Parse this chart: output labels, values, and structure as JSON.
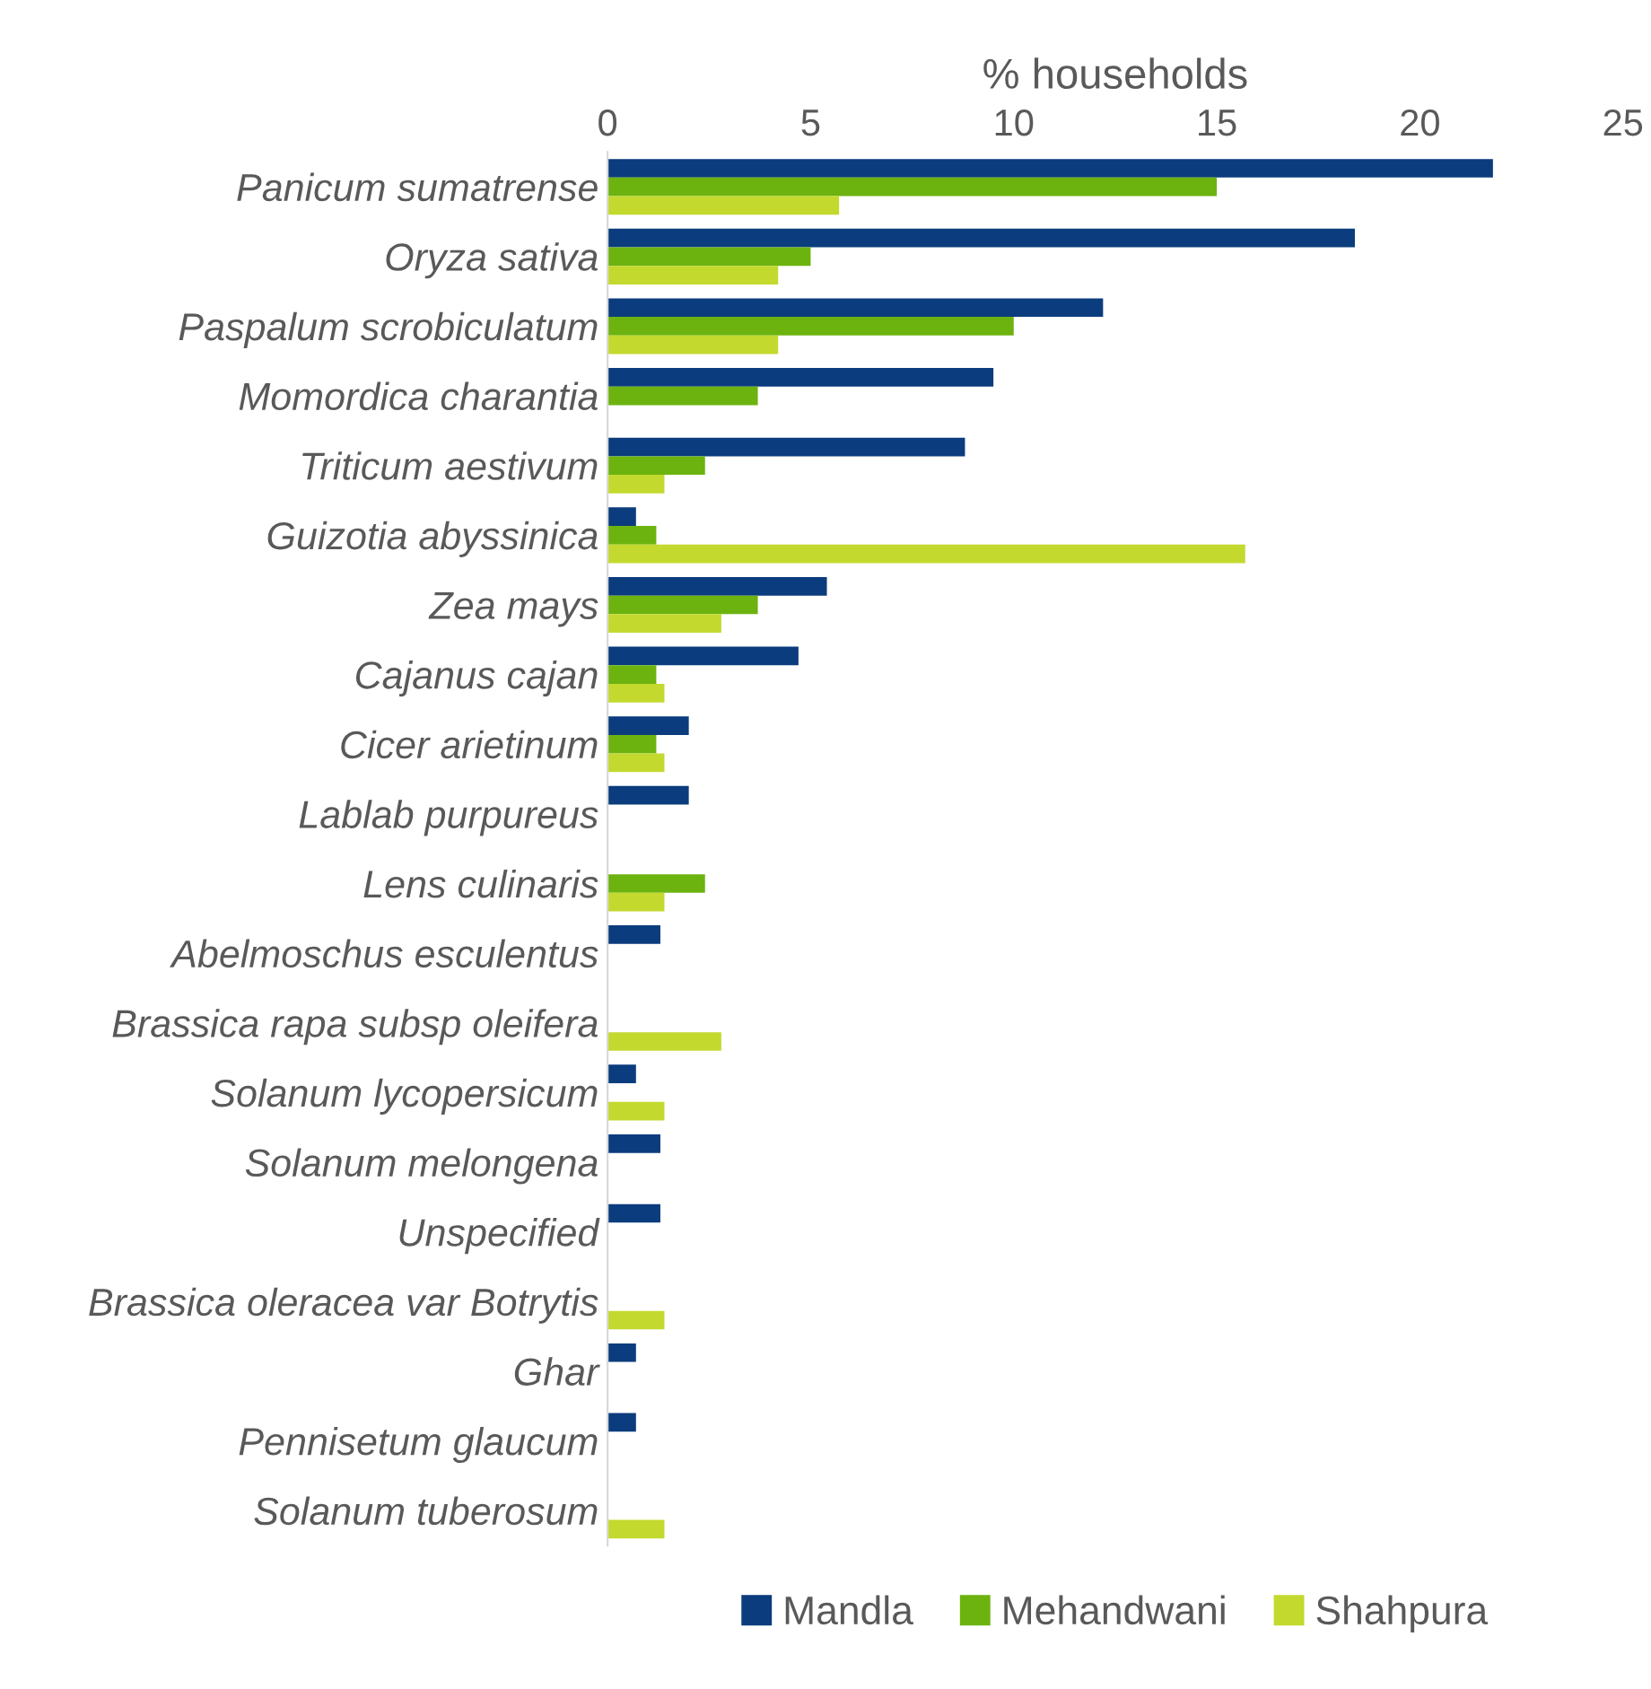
{
  "chart_data": {
    "type": "bar",
    "orientation": "horizontal",
    "xlabel": "% households",
    "categories": [
      "Panicum sumatrense",
      "Oryza sativa",
      "Paspalum scrobiculatum",
      "Momordica charantia",
      "Triticum aestivum",
      "Guizotia abyssinica",
      "Zea mays",
      "Cajanus cajan",
      "Cicer arietinum",
      "Lablab purpureus",
      "Lens culinaris",
      "Abelmoschus esculentus",
      "Brassica rapa subsp oleifera",
      "Solanum lycopersicum",
      "Solanum melongena",
      "Unspecified",
      "Brassica oleracea var Botrytis",
      "Ghar",
      "Pennisetum glaucum",
      "Solanum tuberosum"
    ],
    "series": [
      {
        "name": "Mandla",
        "color": "#0b3c7d",
        "values": [
          21.8,
          18.4,
          12.2,
          9.5,
          8.8,
          0.7,
          5.4,
          4.7,
          2.0,
          2.0,
          null,
          1.3,
          null,
          0.7,
          1.3,
          1.3,
          null,
          0.7,
          0.7,
          null
        ]
      },
      {
        "name": "Mehandwani",
        "color": "#6cb30f",
        "values": [
          15.0,
          5.0,
          10.0,
          3.7,
          2.4,
          1.2,
          3.7,
          1.2,
          1.2,
          null,
          2.4,
          null,
          null,
          null,
          null,
          null,
          null,
          null,
          null,
          null
        ]
      },
      {
        "name": "Shahpura",
        "color": "#c3d92e",
        "values": [
          5.7,
          4.2,
          4.2,
          null,
          1.4,
          15.7,
          2.8,
          1.4,
          1.4,
          null,
          1.4,
          null,
          2.8,
          1.4,
          null,
          null,
          1.4,
          null,
          null,
          1.4
        ]
      }
    ],
    "xlim": [
      0,
      25
    ],
    "xticks": [
      0,
      5,
      10,
      15,
      20,
      25
    ],
    "grid": false,
    "legend": "bottom"
  }
}
